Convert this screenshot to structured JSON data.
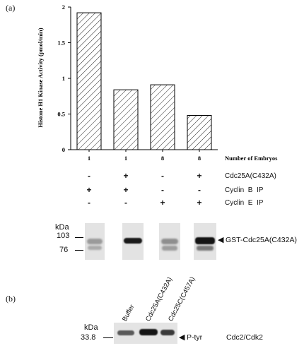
{
  "panel_a": {
    "label": "(a)",
    "chart_data": {
      "type": "bar",
      "title": "",
      "ylabel": "Histone H1 Kinase Activity (pmol/min)",
      "xlabel": "Number of Embryos",
      "categories": [
        "1",
        "1",
        "8",
        "8"
      ],
      "values": [
        1.92,
        0.84,
        0.91,
        0.48
      ],
      "ylim": [
        0,
        2
      ],
      "yticks": [
        "0",
        "0.5",
        "1",
        "1.5",
        "2"
      ],
      "bar_pattern": "diagonal-hatch",
      "grid": false
    },
    "conditions": [
      {
        "label": "Cdc25A(C432A)",
        "signs": [
          "-",
          "+",
          "-",
          "+"
        ]
      },
      {
        "label": "Cyclin  B  IP",
        "signs": [
          "+",
          "+",
          "-",
          "-"
        ]
      },
      {
        "label": "Cyclin  E  IP",
        "signs": [
          "-",
          "-",
          "+",
          "+"
        ]
      }
    ],
    "blot": {
      "kda_label": "kDa",
      "markers": [
        "103",
        "76"
      ],
      "band_label": "GST-Cdc25A(C432A)"
    }
  },
  "panel_b": {
    "label": "(b)",
    "lanes": [
      "Buffer",
      "Cdc25A(C432A)",
      "Cdc25C(C457A)"
    ],
    "blot": {
      "kda_label": "kDa",
      "marker": "33.8",
      "band_label": "P-tyr",
      "target_label": "Cdc2/Cdk2"
    }
  }
}
